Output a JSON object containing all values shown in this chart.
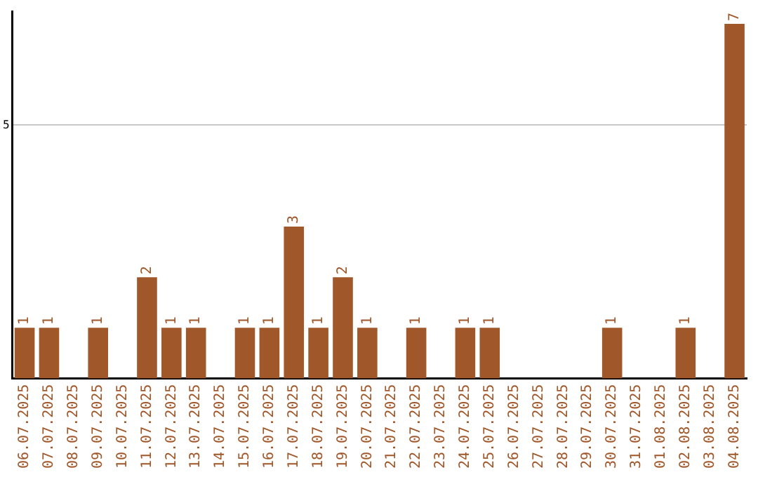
{
  "chart_data": {
    "type": "bar",
    "categories": [
      "06.07.2025",
      "07.07.2025",
      "08.07.2025",
      "09.07.2025",
      "10.07.2025",
      "11.07.2025",
      "12.07.2025",
      "13.07.2025",
      "14.07.2025",
      "15.07.2025",
      "16.07.2025",
      "17.07.2025",
      "18.07.2025",
      "19.07.2025",
      "20.07.2025",
      "21.07.2025",
      "22.07.2025",
      "23.07.2025",
      "24.07.2025",
      "25.07.2025",
      "26.07.2025",
      "27.07.2025",
      "28.07.2025",
      "29.07.2025",
      "30.07.2025",
      "31.07.2025",
      "01.08.2025",
      "02.08.2025",
      "03.08.2025",
      "04.08.2025"
    ],
    "values": [
      1,
      1,
      0,
      1,
      0,
      2,
      1,
      1,
      0,
      1,
      1,
      3,
      1,
      2,
      1,
      0,
      1,
      0,
      1,
      1,
      0,
      0,
      0,
      0,
      1,
      0,
      0,
      1,
      0,
      7
    ],
    "value_labels": [
      "1",
      "1",
      null,
      "1",
      null,
      "2",
      "1",
      "1",
      null,
      "1",
      "1",
      "3",
      "1",
      "2",
      "1",
      null,
      "1",
      null,
      "1",
      "1",
      null,
      null,
      null,
      null,
      "1",
      null,
      null,
      "1",
      null,
      "7"
    ],
    "color": "#a0572a",
    "ylim": [
      0,
      7.25
    ],
    "yticks": [
      5
    ],
    "grid": "y",
    "legend": false
  }
}
